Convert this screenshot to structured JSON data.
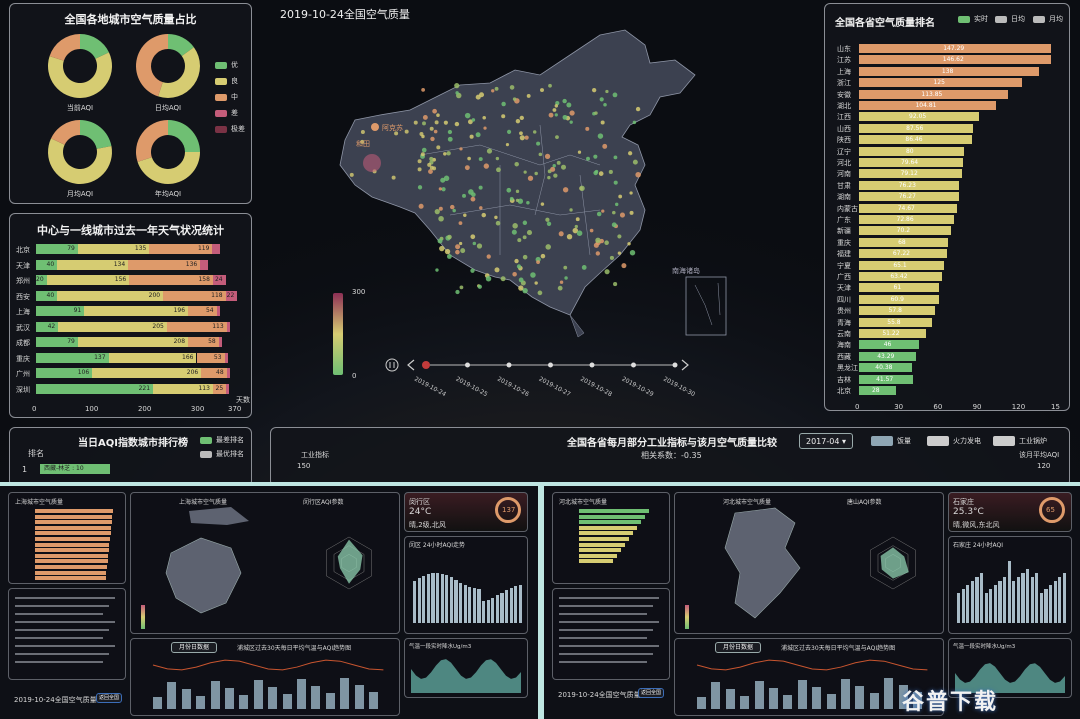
{
  "header": {
    "map_title": "2019-10-24全国空气质量"
  },
  "donut_panel": {
    "title": "全国各地城市空气质量占比",
    "donuts": [
      {
        "label": "当前AQI",
        "slices": [
          0.18,
          0.62,
          0.2
        ]
      },
      {
        "label": "日均AQI",
        "slices": [
          0.15,
          0.4,
          0.45
        ]
      },
      {
        "label": "月均AQI",
        "slices": [
          0.22,
          0.6,
          0.18
        ]
      },
      {
        "label": "年均AQI",
        "slices": [
          0.25,
          0.45,
          0.3
        ]
      }
    ],
    "legend": [
      {
        "label": "优",
        "color": "#6fbf73"
      },
      {
        "label": "良",
        "color": "#d6cc72"
      },
      {
        "label": "中",
        "color": "#de9a6a"
      },
      {
        "label": "差",
        "color": "#c45c7a"
      },
      {
        "label": "极差",
        "color": "#7a3245"
      }
    ]
  },
  "city_panel": {
    "title": "中心与一线城市过去一年天气状况统计",
    "axis_unit": "天数",
    "ticks": [
      "0",
      "100",
      "200",
      "300",
      "370"
    ],
    "rows": [
      {
        "city": "北京",
        "vals": [
          79,
          135,
          119,
          14
        ],
        "labels": [
          "79",
          "135",
          "119",
          "14"
        ]
      },
      {
        "city": "天津",
        "vals": [
          40,
          134,
          136,
          14
        ],
        "labels": [
          "40",
          "134",
          "136",
          "14"
        ]
      },
      {
        "city": "郑州",
        "vals": [
          20,
          156,
          158,
          24
        ],
        "labels": [
          "20",
          "156",
          "158",
          "24"
        ]
      },
      {
        "city": "西安",
        "vals": [
          40,
          200,
          118,
          22
        ],
        "labels": [
          "40",
          "200",
          "118",
          "22"
        ]
      },
      {
        "city": "上海",
        "vals": [
          91,
          196,
          54,
          5
        ],
        "labels": [
          "91",
          "196",
          "54",
          "5"
        ]
      },
      {
        "city": "武汉",
        "vals": [
          42,
          205,
          113,
          5
        ],
        "labels": [
          "42",
          "205",
          "113",
          "5"
        ]
      },
      {
        "city": "成都",
        "vals": [
          79,
          208,
          58,
          7
        ],
        "labels": [
          "79",
          "208",
          "58",
          "7"
        ]
      },
      {
        "city": "重庆",
        "vals": [
          137,
          166,
          53,
          5
        ],
        "labels": [
          "137",
          "166",
          "53",
          "5"
        ]
      },
      {
        "city": "广州",
        "vals": [
          106,
          206,
          48,
          5
        ],
        "labels": [
          "106",
          "206",
          "48",
          "5"
        ]
      },
      {
        "city": "深圳",
        "vals": [
          221,
          113,
          25,
          3
        ],
        "labels": [
          "221",
          "113",
          "25",
          "3"
        ]
      }
    ]
  },
  "rank_panel": {
    "title": "全国各省空气质量排名",
    "legend": [
      "实时",
      "日均",
      "月均"
    ],
    "ticks": [
      "0",
      "30",
      "60",
      "90",
      "120",
      "15"
    ],
    "rows": [
      {
        "prov": "山东",
        "val": 147.29,
        "label": "147.29"
      },
      {
        "prov": "江苏",
        "val": 146.62,
        "label": "146.62"
      },
      {
        "prov": "上海",
        "val": 138,
        "label": "138"
      },
      {
        "prov": "浙江",
        "val": 125,
        "label": "125"
      },
      {
        "prov": "安徽",
        "val": 113.85,
        "label": "113.85"
      },
      {
        "prov": "湖北",
        "val": 104.81,
        "label": "104.81"
      },
      {
        "prov": "江西",
        "val": 92.05,
        "label": "92.05"
      },
      {
        "prov": "山西",
        "val": 87.56,
        "label": "87.56"
      },
      {
        "prov": "陕西",
        "val": 86.46,
        "label": "86.46"
      },
      {
        "prov": "辽宁",
        "val": 80,
        "label": "80"
      },
      {
        "prov": "河北",
        "val": 79.64,
        "label": "79.64"
      },
      {
        "prov": "河南",
        "val": 79.12,
        "label": "79.12"
      },
      {
        "prov": "甘肃",
        "val": 76.23,
        "label": "76.23"
      },
      {
        "prov": "湖南",
        "val": 76.27,
        "label": "76.27"
      },
      {
        "prov": "内蒙古",
        "val": 74.67,
        "label": "74.67"
      },
      {
        "prov": "广东",
        "val": 72.86,
        "label": "72.86"
      },
      {
        "prov": "新疆",
        "val": 70.2,
        "label": "70.2"
      },
      {
        "prov": "重庆",
        "val": 68,
        "label": "68"
      },
      {
        "prov": "福建",
        "val": 67.22,
        "label": "67.22"
      },
      {
        "prov": "宁夏",
        "val": 65.1,
        "label": "65.1"
      },
      {
        "prov": "广西",
        "val": 63.42,
        "label": "63.42"
      },
      {
        "prov": "天津",
        "val": 61,
        "label": "61"
      },
      {
        "prov": "四川",
        "val": 60.9,
        "label": "60.9"
      },
      {
        "prov": "贵州",
        "val": 57.8,
        "label": "57.8"
      },
      {
        "prov": "青海",
        "val": 55.8,
        "label": "55.8"
      },
      {
        "prov": "云南",
        "val": 51.22,
        "label": "51.22"
      },
      {
        "prov": "海南",
        "val": 46,
        "label": "46"
      },
      {
        "prov": "西藏",
        "val": 43.29,
        "label": "43.29"
      },
      {
        "prov": "黑龙江",
        "val": 40.38,
        "label": "40.38"
      },
      {
        "prov": "吉林",
        "val": 41.57,
        "label": "41.57"
      },
      {
        "prov": "北京",
        "val": 28,
        "label": "28"
      }
    ]
  },
  "map": {
    "scale_max": "300",
    "scale_min": "0",
    "city_labels": [
      "阿克苏",
      "和田",
      "南海诸岛"
    ],
    "timeline": [
      "2019-10-24",
      "2019-10-25",
      "2019-10-26",
      "2019-10-27",
      "2019-10-28",
      "2019-10-29",
      "2019-10-30"
    ]
  },
  "today_panel": {
    "title": "当日AQI指数城市排行榜",
    "legend": [
      "最差排名",
      "最优排名"
    ],
    "col": "排名",
    "first": {
      "rank": "1",
      "label": "西藏-林芝 : 10"
    }
  },
  "industry_panel": {
    "title": "全国各省每月部分工业指标与该月空气质量比较",
    "select": "2017-04",
    "legend": [
      "饭量",
      "火力发电",
      "工业锅炉"
    ],
    "corr": "相关系数：-0.35",
    "left_axis": "工业指标",
    "left_tick": "150",
    "right_axis": "该月平均AQI",
    "right_tick": "120"
  },
  "shanghai": {
    "rank_title": "上海城市空气质量",
    "map_title": "上海城市空气质量",
    "radar_title": "闵行区AQI参数",
    "weather": {
      "district": "闵行区",
      "temp": "24°C",
      "desc": "晴,2级,北风",
      "aqi": "137"
    },
    "bar_title": "闵区 24小时AQI走势",
    "trend_title": "浦城区过去30天每日平均气温与AQI趋势图",
    "tab": "月份日数据",
    "area_title": "气温一段实时降水Ug/m3",
    "footer": "2019-10-24全国空气质量",
    "footer_btn": "返回全国"
  },
  "hebei": {
    "rank_title": "河北城市空气质量",
    "map_title": "河北城市空气质量",
    "radar_title": "唐山AQI参数",
    "weather": {
      "district": "石家庄",
      "temp": "25.3°C",
      "desc": "晴,微风,东北风",
      "aqi": "65"
    },
    "bar_title": "石家庄 24小时AQI",
    "trend_title": "浦城区过去30天每日平均气温与AQI趋势图",
    "tab": "月份日数据",
    "area_title": "气温一段实时降水Ug/m3",
    "footer": "2019-10-24全国空气质量",
    "footer_btn": "返回全国"
  },
  "watermark": "谷普下载"
}
